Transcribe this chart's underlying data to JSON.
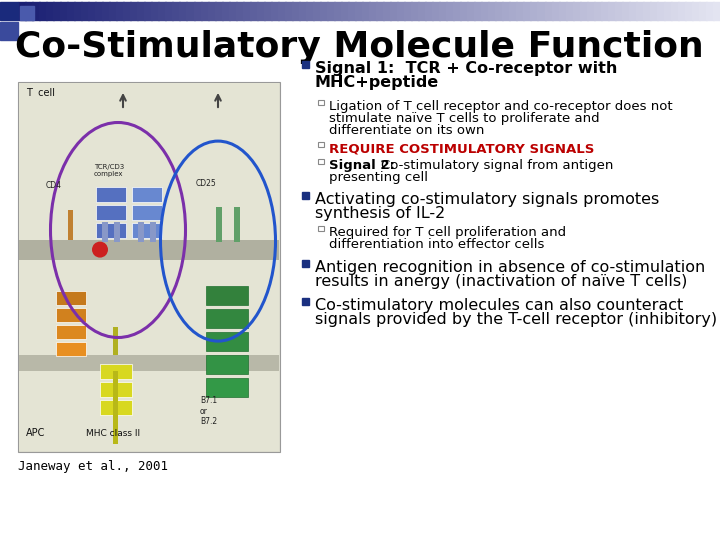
{
  "title": "Co-Stimulatory Molecule Function",
  "title_fontsize": 26,
  "title_color": "#000000",
  "body_bg": "#FFFFFF",
  "bullet1_line1": "Signal 1:  TCR + Co-receptor with",
  "bullet1_line2": "MHC+peptide",
  "bullet1_sub1_l1": "Ligation of T cell receptor and co-receptor does not",
  "bullet1_sub1_l2": "stimulate naïve T cells to proliferate and",
  "bullet1_sub1_l3": "differentiate on its own",
  "bullet1_sub2": "REQUIRE COSTIMULATORY SIGNALS",
  "bullet1_sub2_color": "#BB0000",
  "bullet1_sub3_bold": "Signal 2: ",
  "bullet1_sub3_rest": "Co-stimulatory signal from antigen",
  "bullet1_sub3_l2": "presenting cell",
  "bullet2_l1": "Activating co-stimulatory signals promotes",
  "bullet2_l2": "synthesis of IL-2",
  "bullet2_sub1_l1": "Required for T cell proliferation and",
  "bullet2_sub1_l2": "differentiation into effector cells",
  "bullet3_l1": "Antigen recognition in absence of co-stimulation",
  "bullet3_l2": "results in anergy (inactivation of naïve T cells)",
  "bullet4_l1": "Co-stimulatory molecules can also counteract",
  "bullet4_l2": "signals provided by the T-cell receptor (inhibitory)",
  "caption": "Janeway et al., 2001",
  "bullet_sq_color": "#1a3080",
  "sub_sq_color": "#888888",
  "text_color": "#000000",
  "fs_title": 26,
  "fs_bullet": 11.5,
  "fs_sub": 9.5,
  "fs_caption": 9,
  "header_left_color": "#1a2a6c",
  "header_squares_color": "#2a3a8c"
}
